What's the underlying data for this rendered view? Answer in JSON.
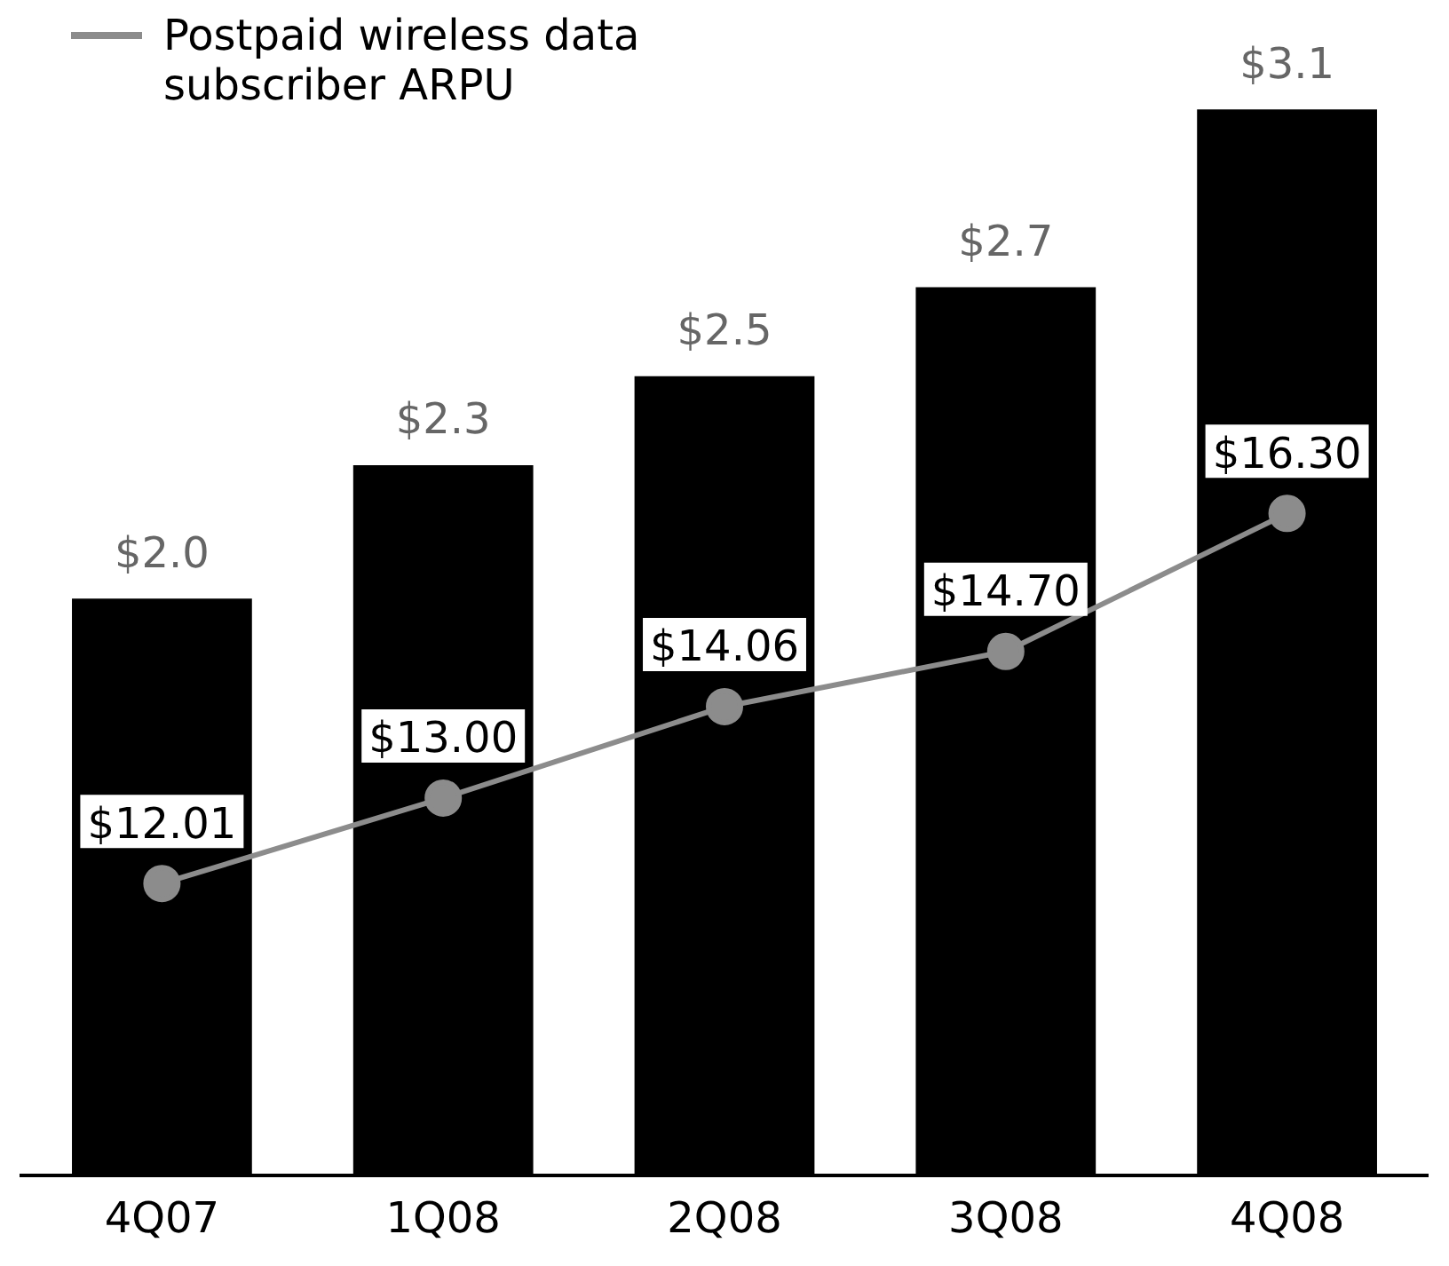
{
  "chart_data": {
    "type": "bar",
    "categories": [
      "4Q07",
      "1Q08",
      "2Q08",
      "3Q08",
      "4Q08"
    ],
    "series": [
      {
        "color": "#000000",
        "values": [
          2.0,
          2.3,
          2.5,
          2.7,
          3.1
        ],
        "value_labels": [
          "$2.0",
          "$2.3",
          "$2.5",
          "$2.7",
          "$3.1"
        ]
      },
      {
        "type": "line",
        "name": "Postpaid wireless data subscriber ARPU",
        "color": "#8c8c8c",
        "axis": "y2",
        "values": [
          12.01,
          13.0,
          14.06,
          14.7,
          16.3
        ],
        "value_labels": [
          "$12.01",
          "$13.00",
          "$14.06",
          "$14.70",
          "$16.30"
        ]
      }
    ],
    "marker": "circle",
    "line_style": "solid",
    "grid": false,
    "legend": "top left",
    "tick_labels": "x"
  }
}
